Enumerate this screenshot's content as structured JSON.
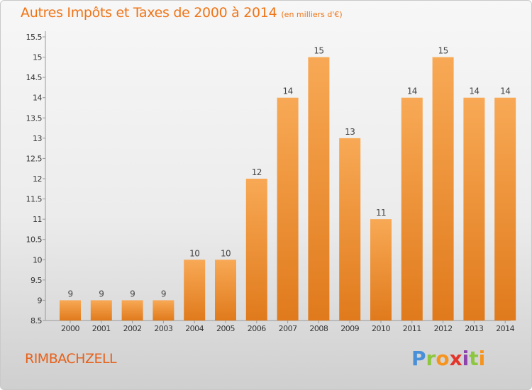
{
  "title": "Autres Impôts et Taxes de 2000 à 2014",
  "subtitle": "(en milliers d'€)",
  "commune": "RIMBACHZELL",
  "logo": {
    "p": "P",
    "r": "r",
    "o": "o",
    "x": "x",
    "i": "i",
    "t": "t",
    "i2": "i"
  },
  "colors": {
    "bar_light": "#f8a955",
    "bar_dark": "#e07a1c",
    "title": "#ef7416"
  },
  "chart_data": {
    "type": "bar",
    "categories": [
      "2000",
      "2001",
      "2002",
      "2003",
      "2004",
      "2005",
      "2006",
      "2007",
      "2008",
      "2009",
      "2010",
      "2011",
      "2012",
      "2013",
      "2014"
    ],
    "values": [
      9,
      9,
      9,
      9,
      10,
      10,
      12,
      14,
      15,
      13,
      11,
      14,
      15,
      14,
      14
    ],
    "data_labels": [
      "9",
      "9",
      "9",
      "9",
      "10",
      "10",
      "12",
      "14",
      "15",
      "13",
      "11",
      "14",
      "15",
      "14",
      "14"
    ],
    "yticks": [
      "8.5",
      "9",
      "9.5",
      "10",
      "10.5",
      "11",
      "11.5",
      "12",
      "12.5",
      "13",
      "13.5",
      "14",
      "14.5",
      "15",
      "15.5"
    ],
    "ylim": [
      8.5,
      15.5
    ],
    "grid": false,
    "xlabel": "",
    "ylabel": ""
  }
}
